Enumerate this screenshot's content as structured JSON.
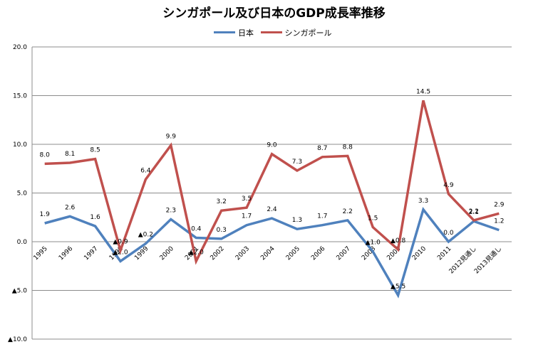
{
  "chart_data": {
    "type": "line",
    "title": "シンガポール及び日本のGDP成長率推移",
    "categories": [
      "1995",
      "1996",
      "1997",
      "1998",
      "1999",
      "2000",
      "2001",
      "2002",
      "2003",
      "2004",
      "2005",
      "2006",
      "2007",
      "2008",
      "2009",
      "2010",
      "2011",
      "2012見通し",
      "2013見通し"
    ],
    "series": [
      {
        "name": "日本",
        "color": "#4f81bd",
        "values": [
          1.9,
          2.6,
          1.6,
          -2.0,
          -0.2,
          2.3,
          0.4,
          0.3,
          1.7,
          2.4,
          1.3,
          1.7,
          2.2,
          -1.0,
          -5.5,
          3.3,
          0.0,
          2.1,
          1.2
        ],
        "labels": [
          "1.9",
          "2.6",
          "1.6",
          "▲2.0",
          "▲0.2",
          "2.3",
          "0.4",
          "0.3",
          "1.7",
          "2.4",
          "1.3",
          "1.7",
          "2.2",
          "▲1.0",
          "▲5.5",
          "3.3",
          "0.0",
          "2.1",
          "1.2"
        ]
      },
      {
        "name": "シンガポール",
        "color": "#c0504d",
        "values": [
          8.0,
          8.1,
          8.5,
          -0.9,
          6.4,
          9.9,
          -2.0,
          3.2,
          3.5,
          9.0,
          7.3,
          8.7,
          8.8,
          1.5,
          -0.8,
          14.5,
          4.9,
          2.2,
          2.9
        ],
        "labels": [
          "8.0",
          "8.1",
          "8.5",
          "▲0.9",
          "6.4",
          "9.9",
          "▲2.0",
          "3.2",
          "3.5",
          "9.0",
          "7.3",
          "8.7",
          "8.8",
          "1.5",
          "▲0.8",
          "14.5",
          "4.9",
          "2.2",
          "2.9"
        ]
      }
    ],
    "y_ticks": [
      {
        "value": 20,
        "label": "20.0"
      },
      {
        "value": 15,
        "label": "15.0"
      },
      {
        "value": 10,
        "label": "10.0"
      },
      {
        "value": 5,
        "label": "5.0"
      },
      {
        "value": 0,
        "label": "0.0"
      },
      {
        "value": -5,
        "label": "▲5.0"
      },
      {
        "value": -10,
        "label": "▲10.0"
      }
    ],
    "ylim": [
      -10,
      20
    ],
    "grid": true,
    "legend_position": "top"
  }
}
